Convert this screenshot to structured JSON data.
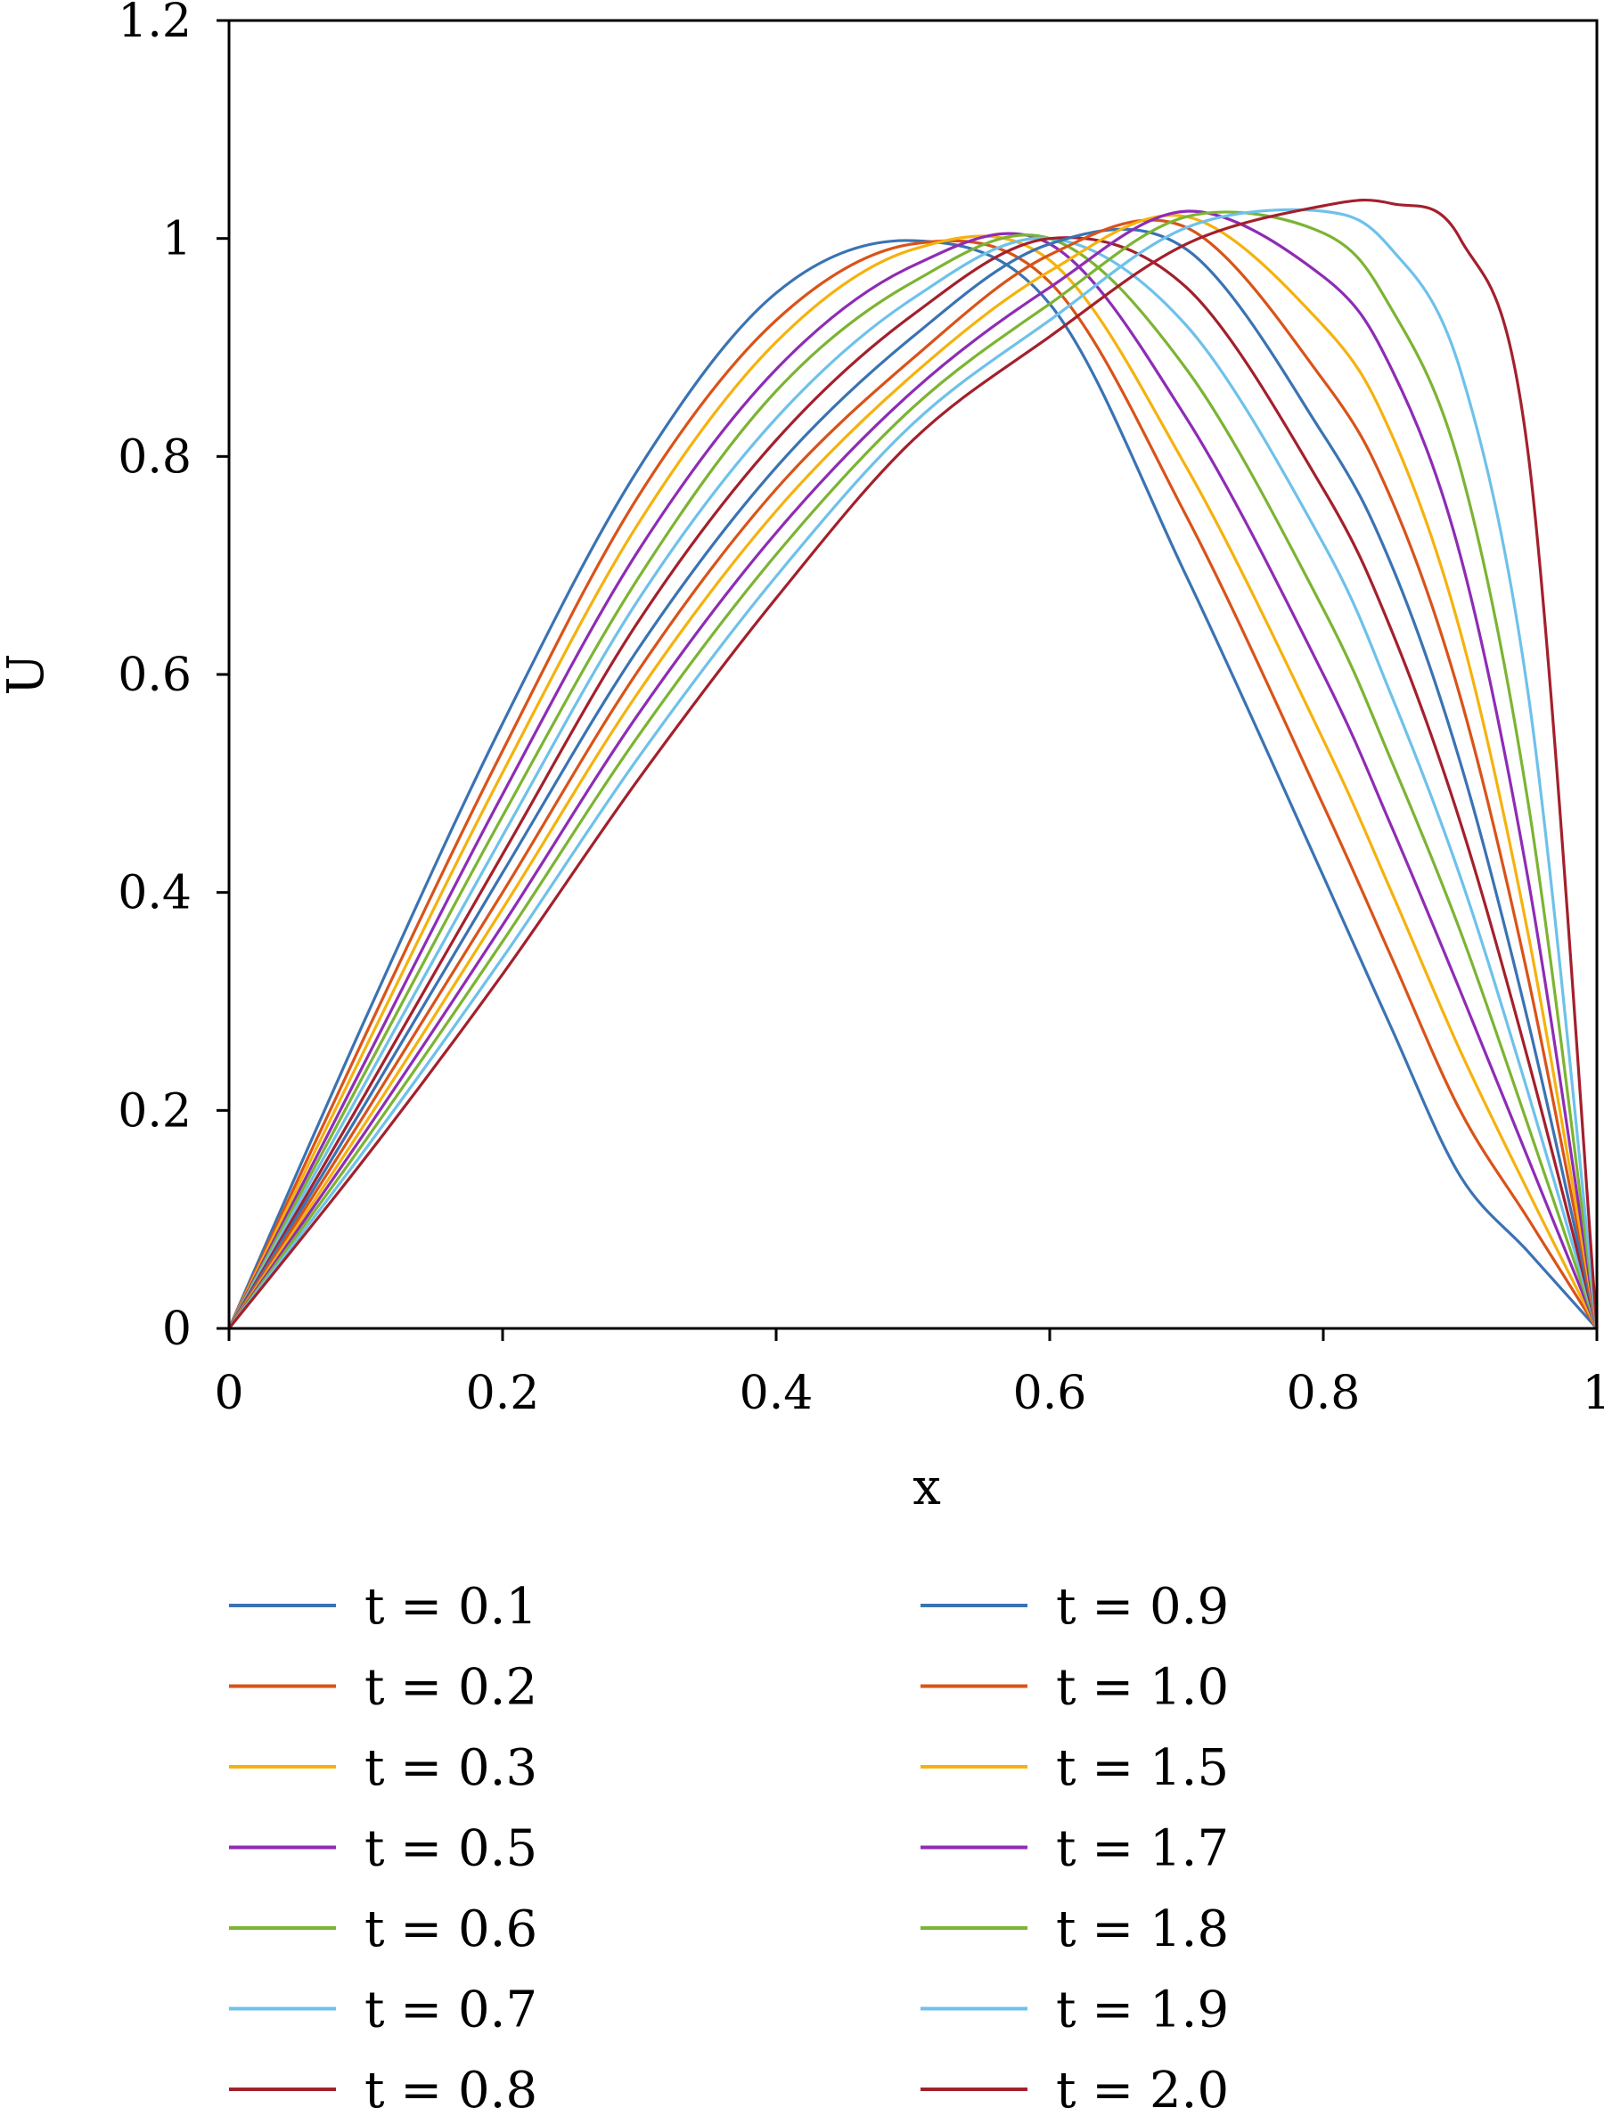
{
  "chart_data": {
    "type": "line",
    "xlabel": "x",
    "ylabel": "U",
    "xlim": [
      0,
      1
    ],
    "ylim": [
      0,
      1.2
    ],
    "xticks": [
      {
        "value": 0,
        "label": "0"
      },
      {
        "value": 0.2,
        "label": "0.2"
      },
      {
        "value": 0.4,
        "label": "0.4"
      },
      {
        "value": 0.6,
        "label": "0.6"
      },
      {
        "value": 0.8,
        "label": "0.8"
      },
      {
        "value": 1,
        "label": "1"
      }
    ],
    "yticks": [
      {
        "value": 0,
        "label": "0"
      },
      {
        "value": 0.2,
        "label": "0.2"
      },
      {
        "value": 0.4,
        "label": "0.4"
      },
      {
        "value": 0.6,
        "label": "0.6"
      },
      {
        "value": 0.8,
        "label": "0.8"
      },
      {
        "value": 1,
        "label": "1"
      },
      {
        "value": 1.2,
        "label": "1.2"
      }
    ],
    "grid": false,
    "legend_position": "bottom, two columns",
    "x": [
      0,
      0.1,
      0.2,
      0.3,
      0.4,
      0.5,
      0.6,
      0.7,
      0.8,
      0.85,
      0.9,
      0.95,
      1.0
    ],
    "series": [
      {
        "name": "t = 0.1",
        "color": "#3a73b3",
        "values": [
          0,
          0.285,
          0.555,
          0.79,
          0.95,
          0.998,
          0.94,
          0.69,
          0.415,
          0.275,
          0.14,
          0.07,
          0
        ]
      },
      {
        "name": "t = 0.2",
        "color": "#d95319",
        "values": [
          0,
          0.27,
          0.53,
          0.765,
          0.925,
          0.995,
          0.96,
          0.745,
          0.48,
          0.34,
          0.2,
          0.1,
          0
        ]
      },
      {
        "name": "t = 0.3",
        "color": "#f5b20e",
        "values": [
          0,
          0.258,
          0.51,
          0.74,
          0.905,
          0.99,
          0.98,
          0.79,
          0.54,
          0.4,
          0.255,
          0.125,
          0
        ]
      },
      {
        "name": "t = 0.5",
        "color": "#8e2cb5",
        "values": [
          0,
          0.246,
          0.49,
          0.715,
          0.88,
          0.975,
          0.995,
          0.835,
          0.6,
          0.46,
          0.31,
          0.155,
          0
        ]
      },
      {
        "name": "t = 0.6",
        "color": "#7cb433",
        "values": [
          0,
          0.236,
          0.47,
          0.69,
          0.86,
          0.96,
          1.0,
          0.88,
          0.66,
          0.52,
          0.365,
          0.185,
          0
        ]
      },
      {
        "name": "t = 0.7",
        "color": "#6ec1ea",
        "values": [
          0,
          0.226,
          0.452,
          0.67,
          0.835,
          0.945,
          1.0,
          0.92,
          0.72,
          0.58,
          0.415,
          0.215,
          0
        ]
      },
      {
        "name": "t = 0.8",
        "color": "#a3202c",
        "values": [
          0,
          0.216,
          0.435,
          0.65,
          0.815,
          0.93,
          1.0,
          0.955,
          0.77,
          0.64,
          0.465,
          0.245,
          0
        ]
      },
      {
        "name": "t = 0.9",
        "color": "#3a73b3",
        "values": [
          0,
          0.207,
          0.418,
          0.625,
          0.79,
          0.91,
          0.995,
          0.99,
          0.82,
          0.7,
          0.52,
          0.28,
          0
        ]
      },
      {
        "name": "t = 1.0",
        "color": "#d95319",
        "values": [
          0,
          0.198,
          0.4,
          0.605,
          0.77,
          0.89,
          0.985,
          1.01,
          0.87,
          0.76,
          0.58,
          0.32,
          0
        ]
      },
      {
        "name": "t = 1.5",
        "color": "#f5b20e",
        "values": [
          0,
          0.189,
          0.385,
          0.585,
          0.75,
          0.875,
          0.97,
          1.02,
          0.92,
          0.82,
          0.64,
          0.36,
          0
        ]
      },
      {
        "name": "t = 1.7",
        "color": "#8e2cb5",
        "values": [
          0,
          0.181,
          0.37,
          0.565,
          0.73,
          0.86,
          0.955,
          1.025,
          0.965,
          0.88,
          0.71,
          0.41,
          0
        ]
      },
      {
        "name": "t = 1.8",
        "color": "#7cb433",
        "values": [
          0,
          0.173,
          0.355,
          0.545,
          0.71,
          0.845,
          0.94,
          1.02,
          1.005,
          0.935,
          0.79,
          0.48,
          0
        ]
      },
      {
        "name": "t = 1.9",
        "color": "#6ec1ea",
        "values": [
          0,
          0.165,
          0.34,
          0.525,
          0.69,
          0.83,
          0.925,
          1.01,
          1.025,
          0.99,
          0.88,
          0.58,
          0
        ]
      },
      {
        "name": "t = 2.0",
        "color": "#a3202c",
        "values": [
          0,
          0.157,
          0.325,
          0.505,
          0.67,
          0.815,
          0.91,
          0.995,
          1.03,
          1.032,
          1.0,
          0.8,
          0
        ]
      }
    ]
  }
}
